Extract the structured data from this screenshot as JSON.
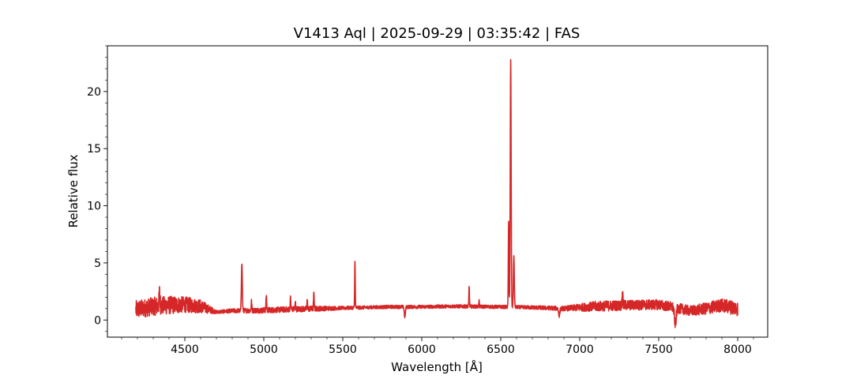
{
  "chart_data": {
    "type": "line",
    "title": "V1413 Aql | 2025-09-29 | 03:35:42 | FAS",
    "xlabel": "Wavelength [Å]",
    "ylabel": "Relative flux",
    "xlim": [
      4010,
      8190
    ],
    "ylim": [
      -1.5,
      24.0
    ],
    "x_ticks": [
      4500,
      5000,
      5500,
      6000,
      6500,
      7000,
      7500,
      8000
    ],
    "x_tick_labels": [
      "4500",
      "5000",
      "5500",
      "6000",
      "6500",
      "7000",
      "7500",
      "8000"
    ],
    "y_ticks": [
      0,
      5,
      10,
      15,
      20
    ],
    "y_tick_labels": [
      "0",
      "5",
      "10",
      "15",
      "20"
    ],
    "x_minor_step": 100,
    "y_minor_step": 1,
    "grid": false,
    "line_color": "#d62728",
    "series": [
      {
        "x_start": 4190,
        "x_end": 8000,
        "baseline": [
          [
            4190,
            0.9
          ],
          [
            4300,
            1.2
          ],
          [
            4400,
            1.3
          ],
          [
            4500,
            1.35
          ],
          [
            4600,
            1.2
          ],
          [
            4700,
            0.7
          ],
          [
            4800,
            0.8
          ],
          [
            5000,
            0.85
          ],
          [
            5200,
            0.95
          ],
          [
            5500,
            1.05
          ],
          [
            5800,
            1.15
          ],
          [
            6000,
            1.15
          ],
          [
            6200,
            1.2
          ],
          [
            6500,
            1.15
          ],
          [
            6700,
            1.1
          ],
          [
            6900,
            1.0
          ],
          [
            7100,
            1.2
          ],
          [
            7300,
            1.3
          ],
          [
            7500,
            1.35
          ],
          [
            7600,
            1.1
          ],
          [
            7700,
            0.8
          ],
          [
            7800,
            1.0
          ],
          [
            7900,
            1.3
          ],
          [
            8000,
            1.0
          ]
        ],
        "noise": [
          [
            4190,
            1.6
          ],
          [
            4400,
            1.6
          ],
          [
            4600,
            1.2
          ],
          [
            4700,
            0.3
          ],
          [
            5000,
            0.5
          ],
          [
            5300,
            0.5
          ],
          [
            5500,
            0.3
          ],
          [
            6000,
            0.3
          ],
          [
            6600,
            0.3
          ],
          [
            6900,
            0.4
          ],
          [
            7100,
            0.9
          ],
          [
            7500,
            0.9
          ],
          [
            7700,
            0.9
          ],
          [
            8000,
            1.3
          ]
        ],
        "lines": [
          {
            "center": 4861,
            "height": 4.2,
            "width": 4
          },
          {
            "center": 4340,
            "height": 1.2,
            "width": 4
          },
          {
            "center": 4922,
            "height": 0.8,
            "width": 3
          },
          {
            "center": 5016,
            "height": 1.3,
            "width": 3
          },
          {
            "center": 5169,
            "height": 1.0,
            "width": 3
          },
          {
            "center": 5200,
            "height": 0.6,
            "width": 3
          },
          {
            "center": 5275,
            "height": 0.7,
            "width": 3
          },
          {
            "center": 5317,
            "height": 1.3,
            "width": 3
          },
          {
            "center": 5577,
            "height": 4.2,
            "width": 2.5
          },
          {
            "center": 6300,
            "height": 1.8,
            "width": 2.5
          },
          {
            "center": 6363,
            "height": 0.5,
            "width": 2.5
          },
          {
            "center": 6550,
            "height": 7.5,
            "width": 3
          },
          {
            "center": 6563,
            "height": 21.7,
            "width": 4
          },
          {
            "center": 6583,
            "height": 4.5,
            "width": 4
          },
          {
            "center": 7271,
            "height": 1.4,
            "width": 3
          }
        ],
        "dips": [
          {
            "center": 5893,
            "depth": 0.9,
            "width": 5
          },
          {
            "center": 6870,
            "depth": 0.6,
            "width": 6
          },
          {
            "center": 7605,
            "depth": 1.4,
            "width": 8
          }
        ]
      }
    ]
  }
}
